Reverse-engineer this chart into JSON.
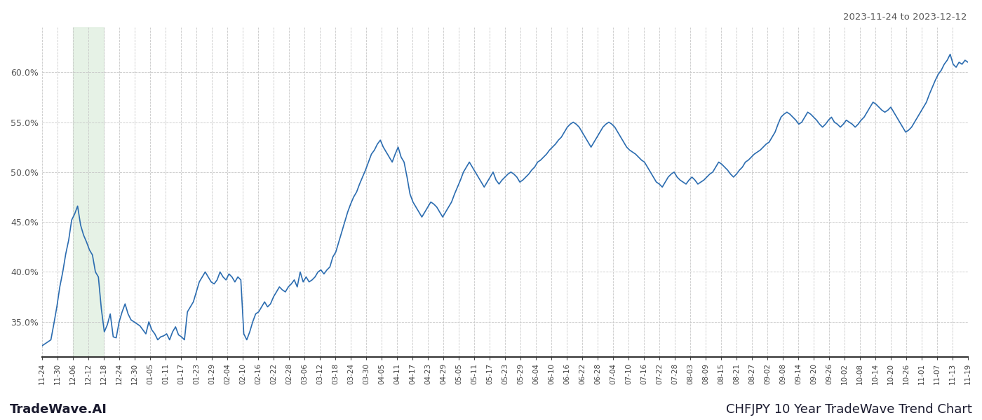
{
  "title_top_right": "2023-11-24 to 2023-12-12",
  "title_bottom_right": "CHFJPY 10 Year TradeWave Trend Chart",
  "title_bottom_left": "TradeWave.AI",
  "line_color": "#2b6cb0",
  "background_color": "#ffffff",
  "grid_color": "#c8c8c8",
  "highlight_color": "#d6ead6",
  "highlight_alpha": 0.6,
  "ylim": [
    0.315,
    0.645
  ],
  "yticks": [
    0.35,
    0.4,
    0.45,
    0.5,
    0.55,
    0.6
  ],
  "x_labels": [
    "11-24",
    "11-30",
    "12-06",
    "12-12",
    "12-18",
    "12-24",
    "12-30",
    "01-05",
    "01-11",
    "01-17",
    "01-23",
    "01-29",
    "02-04",
    "02-10",
    "02-16",
    "02-22",
    "02-28",
    "03-06",
    "03-12",
    "03-18",
    "03-24",
    "03-30",
    "04-05",
    "04-11",
    "04-17",
    "04-23",
    "04-29",
    "05-05",
    "05-11",
    "05-17",
    "05-23",
    "05-29",
    "06-04",
    "06-10",
    "06-16",
    "06-22",
    "06-28",
    "07-04",
    "07-10",
    "07-16",
    "07-22",
    "07-28",
    "08-03",
    "08-09",
    "08-15",
    "08-21",
    "08-27",
    "09-02",
    "09-08",
    "09-14",
    "09-20",
    "09-26",
    "10-02",
    "10-08",
    "10-14",
    "10-20",
    "10-26",
    "11-01",
    "11-07",
    "11-13",
    "11-19"
  ],
  "highlight_x_start_label": "12-06",
  "highlight_x_end_label": "12-18",
  "values": [
    0.326,
    0.328,
    0.33,
    0.332,
    0.348,
    0.365,
    0.385,
    0.4,
    0.418,
    0.432,
    0.452,
    0.458,
    0.466,
    0.447,
    0.437,
    0.43,
    0.422,
    0.417,
    0.4,
    0.395,
    0.363,
    0.34,
    0.347,
    0.358,
    0.335,
    0.334,
    0.35,
    0.36,
    0.368,
    0.358,
    0.352,
    0.35,
    0.348,
    0.346,
    0.342,
    0.338,
    0.35,
    0.342,
    0.338,
    0.332,
    0.335,
    0.336,
    0.338,
    0.332,
    0.34,
    0.345,
    0.337,
    0.335,
    0.332,
    0.36,
    0.365,
    0.37,
    0.38,
    0.39,
    0.395,
    0.4,
    0.395,
    0.39,
    0.388,
    0.392,
    0.4,
    0.395,
    0.392,
    0.398,
    0.395,
    0.39,
    0.395,
    0.392,
    0.338,
    0.332,
    0.34,
    0.35,
    0.358,
    0.36,
    0.365,
    0.37,
    0.365,
    0.368,
    0.375,
    0.38,
    0.385,
    0.382,
    0.38,
    0.385,
    0.388,
    0.392,
    0.385,
    0.4,
    0.39,
    0.395,
    0.39,
    0.392,
    0.395,
    0.4,
    0.402,
    0.398,
    0.402,
    0.405,
    0.415,
    0.42,
    0.43,
    0.44,
    0.45,
    0.46,
    0.468,
    0.475,
    0.48,
    0.488,
    0.495,
    0.502,
    0.51,
    0.518,
    0.522,
    0.528,
    0.532,
    0.525,
    0.52,
    0.515,
    0.51,
    0.518,
    0.525,
    0.515,
    0.51,
    0.495,
    0.478,
    0.47,
    0.465,
    0.46,
    0.455,
    0.46,
    0.465,
    0.47,
    0.468,
    0.465,
    0.46,
    0.455,
    0.46,
    0.465,
    0.47,
    0.478,
    0.485,
    0.492,
    0.5,
    0.505,
    0.51,
    0.505,
    0.5,
    0.495,
    0.49,
    0.485,
    0.49,
    0.495,
    0.5,
    0.492,
    0.488,
    0.492,
    0.495,
    0.498,
    0.5,
    0.498,
    0.495,
    0.49,
    0.492,
    0.495,
    0.498,
    0.502,
    0.505,
    0.51,
    0.512,
    0.515,
    0.518,
    0.522,
    0.525,
    0.528,
    0.532,
    0.535,
    0.54,
    0.545,
    0.548,
    0.55,
    0.548,
    0.545,
    0.54,
    0.535,
    0.53,
    0.525,
    0.53,
    0.535,
    0.54,
    0.545,
    0.548,
    0.55,
    0.548,
    0.545,
    0.54,
    0.535,
    0.53,
    0.525,
    0.522,
    0.52,
    0.518,
    0.515,
    0.512,
    0.51,
    0.505,
    0.5,
    0.495,
    0.49,
    0.488,
    0.485,
    0.49,
    0.495,
    0.498,
    0.5,
    0.495,
    0.492,
    0.49,
    0.488,
    0.492,
    0.495,
    0.492,
    0.488,
    0.49,
    0.492,
    0.495,
    0.498,
    0.5,
    0.505,
    0.51,
    0.508,
    0.505,
    0.502,
    0.498,
    0.495,
    0.498,
    0.502,
    0.505,
    0.51,
    0.512,
    0.515,
    0.518,
    0.52,
    0.522,
    0.525,
    0.528,
    0.53,
    0.535,
    0.54,
    0.548,
    0.555,
    0.558,
    0.56,
    0.558,
    0.555,
    0.552,
    0.548,
    0.55,
    0.555,
    0.56,
    0.558,
    0.555,
    0.552,
    0.548,
    0.545,
    0.548,
    0.552,
    0.555,
    0.55,
    0.548,
    0.545,
    0.548,
    0.552,
    0.55,
    0.548,
    0.545,
    0.548,
    0.552,
    0.555,
    0.56,
    0.565,
    0.57,
    0.568,
    0.565,
    0.562,
    0.56,
    0.562,
    0.565,
    0.56,
    0.555,
    0.55,
    0.545,
    0.54,
    0.542,
    0.545,
    0.55,
    0.555,
    0.56,
    0.565,
    0.57,
    0.578,
    0.585,
    0.592,
    0.598,
    0.602,
    0.608,
    0.612,
    0.618,
    0.608,
    0.605,
    0.61,
    0.608,
    0.612,
    0.61
  ]
}
